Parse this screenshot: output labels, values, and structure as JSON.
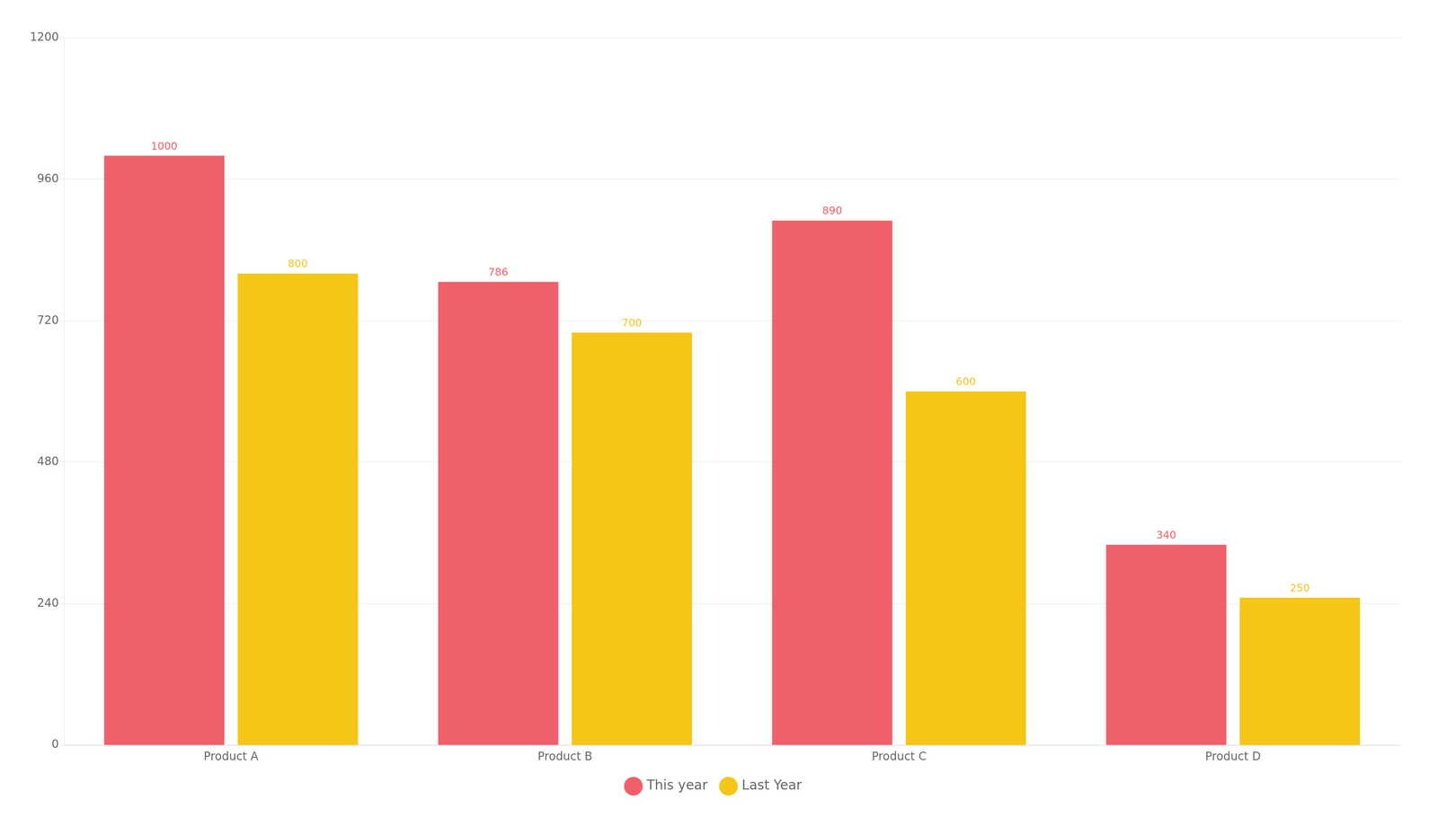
{
  "chart_data": {
    "type": "bar",
    "categories": [
      "Product A",
      "Product B",
      "Product C",
      "Product D"
    ],
    "series": [
      {
        "name": "This year",
        "color": "#F0606A",
        "values": [
          1000,
          786,
          890,
          340
        ]
      },
      {
        "name": "Last Year",
        "color": "#F5C518",
        "values": [
          800,
          700,
          600,
          250
        ]
      }
    ],
    "ylim": [
      0,
      1200
    ],
    "yticks": [
      0,
      240,
      480,
      720,
      960,
      1200
    ],
    "grid": true,
    "legend": "bottom",
    "data_labels": true
  }
}
